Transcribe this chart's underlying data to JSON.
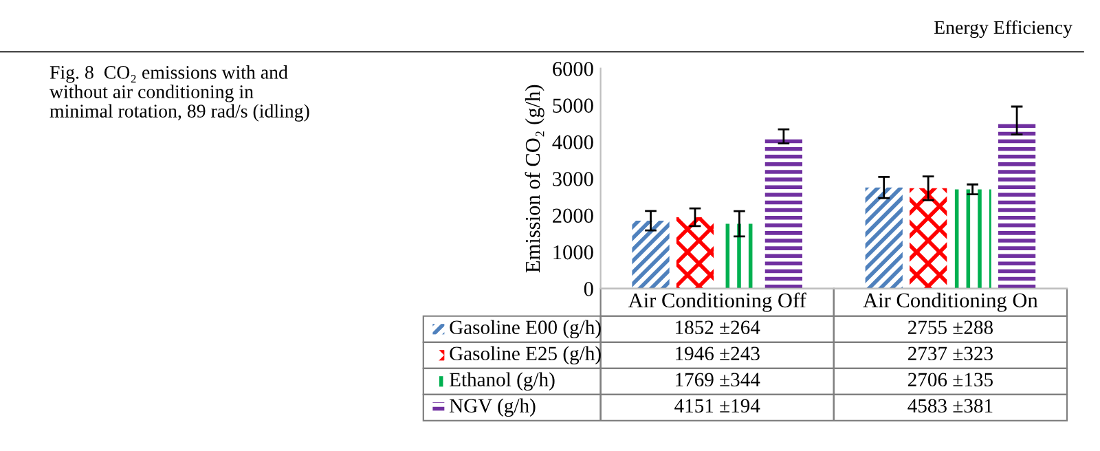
{
  "chart_data": {
    "type": "bar",
    "title": "Fig. 8  CO₂ emissions with and\nwithout air conditioning in\nminimal rotation, 89 rad/s (idling)",
    "ylabel": "Emission of CO₂ (g/h)",
    "annotations": [
      "Energy Efficiency"
    ],
    "categories": [
      "Air Conditioning Off",
      "Air Conditioning On"
    ],
    "series": [
      {
        "name": "Gasoline E00 (g/h)",
        "color": "#4f81bd",
        "values": [
          1852,
          2755
        ],
        "errors": [
          264,
          288
        ],
        "value_labels": [
          "1852 ±264",
          "2755 ±288"
        ]
      },
      {
        "name": "Gasoline E25 (g/h)",
        "color": "#ff0000",
        "values": [
          1946,
          2737
        ],
        "errors": [
          243,
          323
        ],
        "value_labels": [
          "1946 ±243",
          "2737 ±323"
        ]
      },
      {
        "name": "Ethanol (g/h)",
        "color": "#00b050",
        "values": [
          1769,
          2706
        ],
        "errors": [
          344,
          135
        ],
        "value_labels": [
          "1769 ±344",
          "2706 ±135"
        ]
      },
      {
        "name": "NGV (g/h)",
        "color": "#7030a0",
        "values": [
          4151,
          4583
        ],
        "errors": [
          194,
          381
        ],
        "value_labels": [
          "4151 ±194",
          "4583 ±381"
        ]
      }
    ],
    "ylim": [
      0,
      6000
    ],
    "yticks": [
      0,
      1000,
      2000,
      3000,
      4000,
      5000,
      6000
    ],
    "grid": false,
    "legend": "bottom"
  }
}
